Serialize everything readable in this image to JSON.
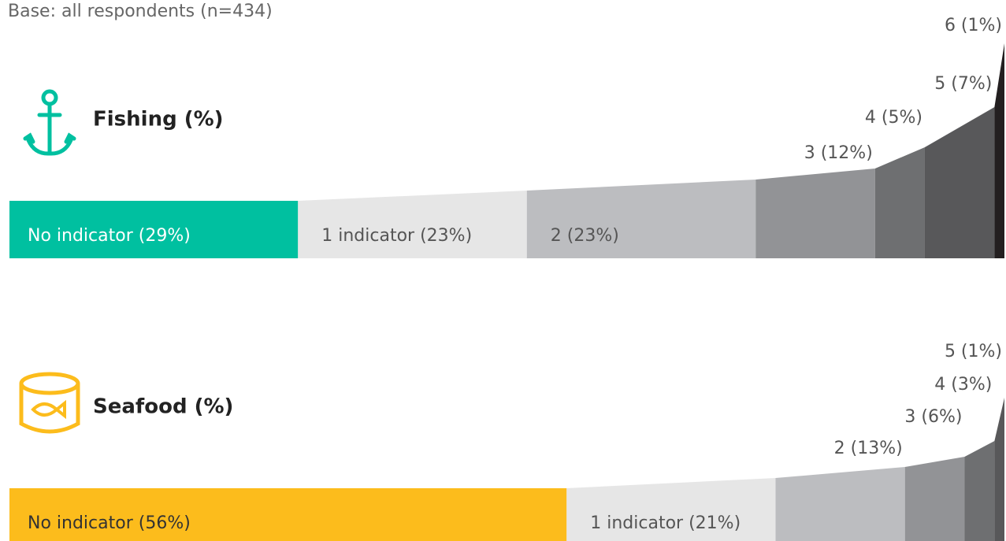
{
  "note": "Base: all respondents (n=434)",
  "chart_data": [
    {
      "type": "bar",
      "title": "Fishing (%)",
      "values": [
        29,
        23,
        23,
        12,
        5,
        7,
        1
      ],
      "value_labels": [
        "No indicator (29%)",
        "1 indicator (23%)",
        "2 (23%)",
        "3 (12%)",
        "4 (5%)",
        "5 (7%)",
        "6 (1%)"
      ],
      "colors": [
        "#00c0a0",
        "#e6e6e6",
        "#bcbdc0",
        "#929396",
        "#6e6f71",
        "#58585a",
        "#231f20"
      ]
    },
    {
      "type": "bar",
      "title": "Seafood (%)",
      "values": [
        56,
        21,
        13,
        6,
        3,
        1
      ],
      "value_labels": [
        "No indicator (56%)",
        "1 indicator (21%)",
        "2 (13%)",
        "3 (6%)",
        "4 (3%)",
        "5 (1%)"
      ],
      "colors": [
        "#fcbc1c",
        "#e6e6e6",
        "#bcbdc0",
        "#929396",
        "#6e6f71",
        "#58585a"
      ]
    }
  ]
}
